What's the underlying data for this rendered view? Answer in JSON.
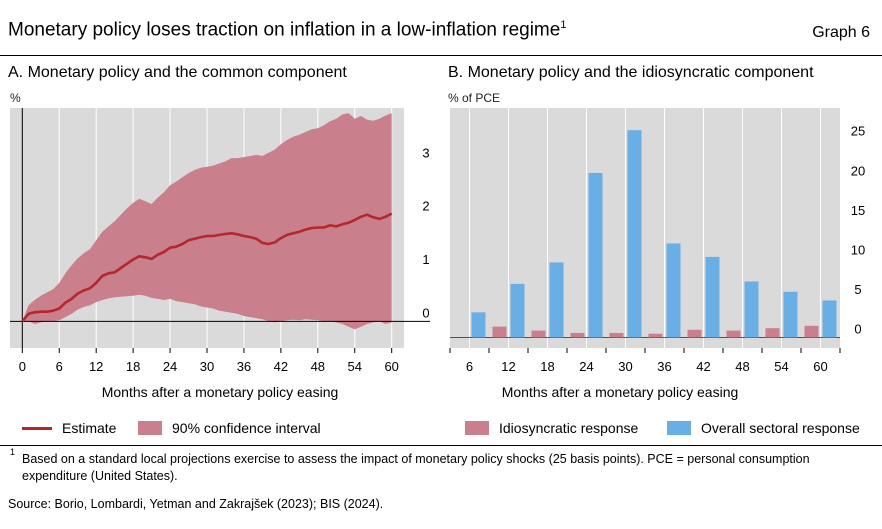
{
  "header": {
    "title": "Monetary policy loses traction on inflation in a low-inflation regime",
    "title_sup": "1",
    "graph_number": "Graph 6"
  },
  "colors": {
    "estimate_line": "#b3282d",
    "confidence_band": "#c97f8c",
    "idiosyncratic_bar": "#c97f8c",
    "overall_bar": "#6aaee6",
    "panel_bg": "#dadada"
  },
  "chart_data": [
    {
      "type": "area",
      "title": "A. Monetary policy and the common component",
      "ylabel": "%",
      "xlabel": "Months after a monetary policy easing",
      "xlim": [
        -2,
        62
      ],
      "ylim": [
        -0.5,
        4.0
      ],
      "x_ticks": [
        0,
        6,
        12,
        18,
        24,
        30,
        36,
        42,
        48,
        54,
        60
      ],
      "x_tick_labels": [
        "0",
        "6",
        "12",
        "18",
        "24",
        "30",
        "36",
        "42",
        "48",
        "54",
        "60"
      ],
      "y_ticks": [
        0,
        1,
        2,
        3
      ],
      "y_tick_labels": [
        "0",
        "1",
        "2",
        "3"
      ],
      "grid": "vertical",
      "x": [
        0,
        1,
        2,
        3,
        4,
        5,
        6,
        7,
        8,
        9,
        10,
        11,
        12,
        13,
        14,
        15,
        16,
        17,
        18,
        19,
        20,
        21,
        22,
        23,
        24,
        25,
        26,
        27,
        28,
        29,
        30,
        31,
        32,
        33,
        34,
        35,
        36,
        37,
        38,
        39,
        40,
        41,
        42,
        43,
        44,
        45,
        46,
        47,
        48,
        49,
        50,
        51,
        52,
        53,
        54,
        55,
        56,
        57,
        58,
        59,
        60
      ],
      "series": [
        {
          "name": "Estimate",
          "style": "line",
          "values": [
            0.0,
            0.14,
            0.17,
            0.18,
            0.18,
            0.2,
            0.24,
            0.35,
            0.42,
            0.52,
            0.58,
            0.62,
            0.72,
            0.85,
            0.9,
            0.92,
            1.0,
            1.08,
            1.16,
            1.22,
            1.2,
            1.17,
            1.25,
            1.3,
            1.38,
            1.4,
            1.45,
            1.52,
            1.55,
            1.58,
            1.6,
            1.6,
            1.62,
            1.64,
            1.65,
            1.63,
            1.6,
            1.58,
            1.55,
            1.47,
            1.45,
            1.48,
            1.56,
            1.62,
            1.65,
            1.68,
            1.72,
            1.75,
            1.76,
            1.76,
            1.8,
            1.78,
            1.82,
            1.85,
            1.9,
            1.96,
            2.0,
            1.95,
            1.92,
            1.96,
            2.02
          ]
        },
        {
          "name": "90% confidence interval",
          "style": "band",
          "lower": [
            0.0,
            0.0,
            -0.05,
            -0.02,
            0.0,
            0.0,
            0.02,
            0.08,
            0.14,
            0.22,
            0.27,
            0.3,
            0.36,
            0.4,
            0.43,
            0.45,
            0.46,
            0.47,
            0.48,
            0.5,
            0.48,
            0.44,
            0.42,
            0.4,
            0.42,
            0.38,
            0.36,
            0.34,
            0.32,
            0.28,
            0.26,
            0.24,
            0.2,
            0.18,
            0.16,
            0.14,
            0.1,
            0.08,
            0.06,
            0.04,
            0.0,
            -0.02,
            0.0,
            0.02,
            0.03,
            0.02,
            0.04,
            0.03,
            0.02,
            0.0,
            0.0,
            -0.02,
            -0.05,
            -0.1,
            -0.15,
            -0.1,
            -0.05,
            -0.02,
            0.0,
            -0.05,
            -0.02
          ],
          "upper": [
            0.0,
            0.3,
            0.4,
            0.48,
            0.54,
            0.6,
            0.72,
            0.9,
            1.05,
            1.18,
            1.28,
            1.35,
            1.52,
            1.68,
            1.78,
            1.88,
            2.0,
            2.12,
            2.22,
            2.3,
            2.25,
            2.2,
            2.32,
            2.42,
            2.55,
            2.62,
            2.7,
            2.78,
            2.84,
            2.88,
            2.9,
            2.92,
            2.96,
            3.0,
            3.06,
            3.06,
            3.08,
            3.1,
            3.12,
            3.1,
            3.16,
            3.22,
            3.32,
            3.4,
            3.46,
            3.5,
            3.55,
            3.6,
            3.62,
            3.68,
            3.75,
            3.8,
            3.88,
            3.9,
            3.8,
            3.85,
            3.78,
            3.76,
            3.8,
            3.86,
            3.9
          ]
        }
      ]
    },
    {
      "type": "bar",
      "title": "B. Monetary policy and the idiosyncratic component",
      "ylabel": "% of PCE",
      "xlabel": "Months after a monetary policy easing",
      "ylim": [
        -1.3,
        29
      ],
      "y_ticks": [
        0,
        5,
        10,
        15,
        20,
        25
      ],
      "y_tick_labels": [
        "0",
        "5",
        "10",
        "15",
        "20",
        "25"
      ],
      "grid": "vertical",
      "categories": [
        "6",
        "12",
        "18",
        "24",
        "30",
        "36",
        "42",
        "48",
        "54",
        "60"
      ],
      "series": [
        {
          "name": "Idiosyncratic response",
          "values": [
            0,
            1.4,
            0.9,
            0.6,
            0.6,
            0.5,
            1.0,
            0.9,
            1.2,
            1.5
          ]
        },
        {
          "name": "Overall sectoral response",
          "values": [
            3.2,
            6.8,
            9.5,
            20.8,
            26.2,
            11.9,
            10.2,
            7.1,
            5.8,
            4.7
          ]
        }
      ]
    }
  ],
  "legend": {
    "estimate": "Estimate",
    "confidence": "90% confidence interval",
    "idiosyncratic": "Idiosyncratic response",
    "overall": "Overall sectoral response"
  },
  "footnotes": {
    "note_mark": "1",
    "note_text": "Based on a standard local projections exercise to assess the impact of monetary policy shocks (25 basis points). PCE = personal consumption expenditure (United States).",
    "source": "Source: Borio, Lombardi, Yetman and Zakrajšek (2023); BIS (2024)."
  }
}
